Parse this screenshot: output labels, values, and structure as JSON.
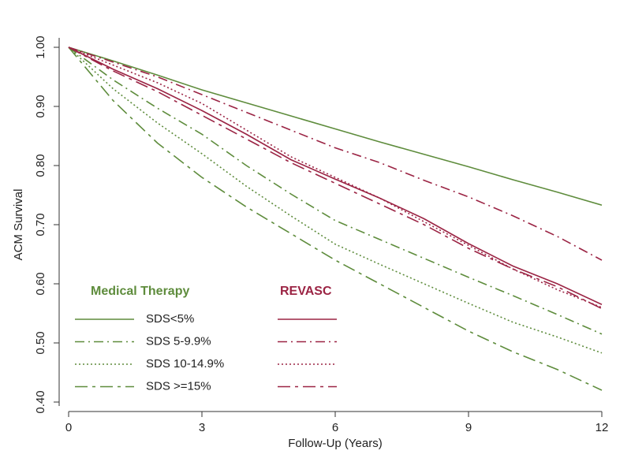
{
  "chart_data": {
    "type": "line",
    "x_label": "Follow-Up (Years)",
    "y_label": "ACM Survival",
    "x": [
      0,
      1,
      2,
      3,
      4,
      5,
      6,
      7,
      8,
      9,
      10,
      11,
      12
    ],
    "xlim": [
      0,
      12
    ],
    "xticks": [
      0,
      3,
      6,
      9,
      12
    ],
    "ylim": [
      0.4,
      1.0
    ],
    "yticks": [
      {
        "value": 0.4,
        "label": "0.40"
      },
      {
        "value": 0.5,
        "label": "0.50"
      },
      {
        "value": 0.6,
        "label": "0.60"
      },
      {
        "value": 0.7,
        "label": "0.70"
      },
      {
        "value": 0.8,
        "label": "0.80"
      },
      {
        "value": 0.9,
        "label": "0.90"
      },
      {
        "value": 1.0,
        "label": "1.00"
      }
    ],
    "legend_labels": [
      "SDS<5%",
      "SDS 5-9.9%",
      "SDS 10-14.9%",
      "SDS >=15%"
    ],
    "line_styles": [
      "solid",
      "dashdot",
      "dotted",
      "longdash"
    ],
    "groups": [
      {
        "name": "Medical Therapy",
        "color": "#5e8c3c",
        "series": [
          {
            "values": [
              1.0,
              0.977,
              0.953,
              0.928,
              0.906,
              0.884,
              0.862,
              0.84,
              0.819,
              0.798,
              0.776,
              0.755,
              0.733
            ]
          },
          {
            "values": [
              1.0,
              0.945,
              0.897,
              0.853,
              0.8,
              0.752,
              0.707,
              0.675,
              0.643,
              0.611,
              0.58,
              0.548,
              0.515
            ]
          },
          {
            "values": [
              1.0,
              0.93,
              0.872,
              0.82,
              0.765,
              0.715,
              0.667,
              0.633,
              0.6,
              0.567,
              0.535,
              0.51,
              0.483
            ]
          },
          {
            "values": [
              1.0,
              0.91,
              0.838,
              0.78,
              0.73,
              0.685,
              0.64,
              0.6,
              0.56,
              0.52,
              0.485,
              0.455,
              0.42
            ]
          }
        ]
      },
      {
        "name": "REVASC",
        "color": "#9b2444",
        "series": [
          {
            "values": [
              1.0,
              0.963,
              0.93,
              0.893,
              0.853,
              0.81,
              0.777,
              0.745,
              0.71,
              0.668,
              0.63,
              0.6,
              0.565
            ]
          },
          {
            "values": [
              1.0,
              0.975,
              0.95,
              0.92,
              0.89,
              0.86,
              0.83,
              0.805,
              0.775,
              0.747,
              0.715,
              0.68,
              0.64
            ]
          },
          {
            "values": [
              1.0,
              0.97,
              0.94,
              0.905,
              0.86,
              0.815,
              0.78,
              0.745,
              0.705,
              0.665,
              0.625,
              0.59,
              0.56
            ]
          },
          {
            "values": [
              1.0,
              0.96,
              0.925,
              0.885,
              0.845,
              0.805,
              0.77,
              0.735,
              0.7,
              0.66,
              0.625,
              0.595,
              0.558
            ]
          }
        ]
      }
    ]
  }
}
